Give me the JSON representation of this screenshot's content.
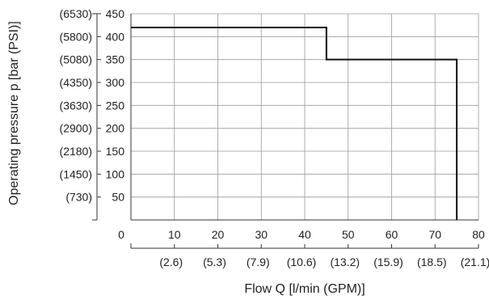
{
  "chart_data": {
    "type": "line",
    "title": "",
    "xlabel": "Flow Q [l/min (GPM)]",
    "ylabel": "Operating pressure p [bar (PSI)]",
    "xlim": [
      0,
      80
    ],
    "ylim": [
      0,
      450
    ],
    "grid": true,
    "x_ticks": [
      {
        "value": 0,
        "label": "0",
        "label2": ""
      },
      {
        "value": 10,
        "label": "10",
        "label2": "(2.6)"
      },
      {
        "value": 20,
        "label": "20",
        "label2": "(5.3)"
      },
      {
        "value": 30,
        "label": "30",
        "label2": "(7.9)"
      },
      {
        "value": 40,
        "label": "40",
        "label2": "(10.6)"
      },
      {
        "value": 50,
        "label": "50",
        "label2": "(13.2)"
      },
      {
        "value": 60,
        "label": "60",
        "label2": "(15.9)"
      },
      {
        "value": 70,
        "label": "70",
        "label2": "(18.5)"
      },
      {
        "value": 80,
        "label": "80",
        "label2": "(21.1)"
      }
    ],
    "y_ticks": [
      {
        "value": 50,
        "label": "50",
        "label2": "(730)"
      },
      {
        "value": 100,
        "label": "100",
        "label2": "(1450)"
      },
      {
        "value": 150,
        "label": "150",
        "label2": "(2180)"
      },
      {
        "value": 200,
        "label": "200",
        "label2": "(2900)"
      },
      {
        "value": 250,
        "label": "250",
        "label2": "(3630)"
      },
      {
        "value": 300,
        "label": "300",
        "label2": "(4350)"
      },
      {
        "value": 350,
        "label": "350",
        "label2": "(5080)"
      },
      {
        "value": 400,
        "label": "400",
        "label2": "(5800)"
      },
      {
        "value": 450,
        "label": "450",
        "label2": "(6530)"
      }
    ],
    "series": [
      {
        "x": [
          0,
          45,
          45,
          75,
          75
        ],
        "y": [
          420,
          420,
          350,
          350,
          0
        ]
      }
    ]
  }
}
